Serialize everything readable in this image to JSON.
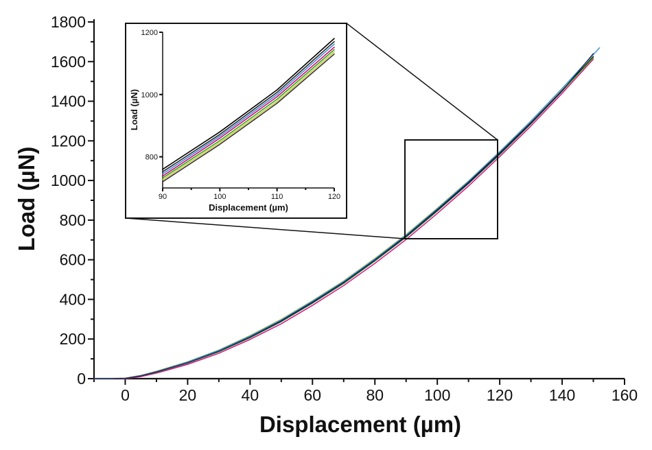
{
  "chart_data": [
    {
      "type": "line",
      "title": "",
      "xlabel": "Displacement (µm)",
      "ylabel": "Load (µN)",
      "xlim": [
        -10,
        160
      ],
      "ylim": [
        0,
        1800
      ],
      "xticks": [
        0,
        20,
        40,
        60,
        80,
        100,
        120,
        140,
        160
      ],
      "yticks": [
        0,
        200,
        400,
        600,
        800,
        1000,
        1200,
        1400,
        1600,
        1800
      ],
      "grid": false,
      "legend": "none",
      "series": [
        {
          "color": "#000000",
          "x": [
            -10,
            -5,
            0,
            5,
            10,
            20,
            30,
            40,
            50,
            60,
            70,
            80,
            90,
            100,
            110,
            120,
            130,
            140,
            150
          ],
          "y": [
            0,
            0,
            2,
            15,
            35,
            82,
            140,
            212,
            293,
            387,
            487,
            600,
            720,
            853,
            990,
            1138,
            1292,
            1455,
            1625
          ]
        },
        {
          "color": "#e0007a",
          "x": [
            -10,
            -5,
            0,
            5,
            10,
            20,
            30,
            40,
            50,
            60,
            70,
            80,
            90,
            100,
            110,
            120,
            130,
            140,
            150
          ],
          "y": [
            0,
            0,
            0,
            10,
            28,
            72,
            128,
            198,
            277,
            370,
            470,
            582,
            702,
            834,
            972,
            1120,
            1275,
            1440,
            1612
          ]
        },
        {
          "color": "#22aa22",
          "x": [
            -10,
            -5,
            0,
            5,
            10,
            20,
            30,
            40,
            50,
            60,
            70,
            80,
            90,
            100,
            110,
            120,
            130,
            140,
            150
          ],
          "y": [
            0,
            0,
            1,
            13,
            32,
            78,
            135,
            206,
            287,
            380,
            480,
            593,
            713,
            845,
            983,
            1130,
            1285,
            1450,
            1620
          ]
        },
        {
          "color": "#d4c832",
          "x": [
            -10,
            -5,
            0,
            5,
            10,
            20,
            30,
            40,
            50,
            60,
            70,
            80,
            90,
            100,
            110,
            120,
            130,
            140,
            150
          ],
          "y": [
            0,
            0,
            3,
            17,
            38,
            86,
            145,
            218,
            300,
            394,
            494,
            607,
            728,
            861,
            998,
            1146,
            1300,
            1463,
            1634
          ]
        },
        {
          "color": "#3c8fd6",
          "x": [
            -10,
            -5,
            0,
            5,
            10,
            20,
            30,
            40,
            50,
            60,
            70,
            80,
            90,
            100,
            110,
            120,
            130,
            140,
            152
          ],
          "y": [
            0,
            0,
            2,
            16,
            36,
            84,
            143,
            215,
            297,
            391,
            491,
            604,
            725,
            858,
            996,
            1145,
            1300,
            1465,
            1670
          ]
        },
        {
          "color": "#222266",
          "x": [
            -10,
            -5,
            0,
            5,
            10,
            20,
            30,
            40,
            50,
            60,
            70,
            80,
            90,
            100,
            110,
            120,
            130,
            140,
            150
          ],
          "y": [
            0,
            0,
            2,
            14,
            34,
            80,
            138,
            209,
            290,
            384,
            484,
            597,
            717,
            849,
            986,
            1134,
            1288,
            1452,
            1640
          ]
        }
      ]
    },
    {
      "type": "line",
      "title": "",
      "xlabel": "Displacement (µm)",
      "ylabel": "Load (µN)",
      "xlim": [
        90,
        120
      ],
      "ylim": [
        700,
        1200
      ],
      "xticks": [
        90,
        100,
        110,
        120
      ],
      "yticks": [
        800,
        1000,
        1200
      ],
      "grid": false,
      "legend": "none",
      "series": [
        {
          "color": "#000000",
          "x": [
            90,
            100,
            110,
            120
          ],
          "y": [
            760,
            880,
            1015,
            1180
          ]
        },
        {
          "color": "#2a2a2a",
          "x": [
            90,
            100,
            110,
            120
          ],
          "y": [
            752,
            872,
            1007,
            1170
          ]
        },
        {
          "color": "#e0007a",
          "x": [
            90,
            100,
            110,
            120
          ],
          "y": [
            738,
            860,
            993,
            1152
          ]
        },
        {
          "color": "#22aa22",
          "x": [
            90,
            100,
            110,
            120
          ],
          "y": [
            732,
            852,
            985,
            1144
          ]
        },
        {
          "color": "#d4c832",
          "x": [
            90,
            100,
            110,
            120
          ],
          "y": [
            726,
            846,
            978,
            1137
          ]
        },
        {
          "color": "#3c8fd6",
          "x": [
            90,
            100,
            110,
            120
          ],
          "y": [
            745,
            866,
            1000,
            1162
          ]
        },
        {
          "color": "#333333",
          "x": [
            90,
            100,
            110,
            120
          ],
          "y": [
            720,
            840,
            972,
            1130
          ]
        }
      ]
    }
  ]
}
